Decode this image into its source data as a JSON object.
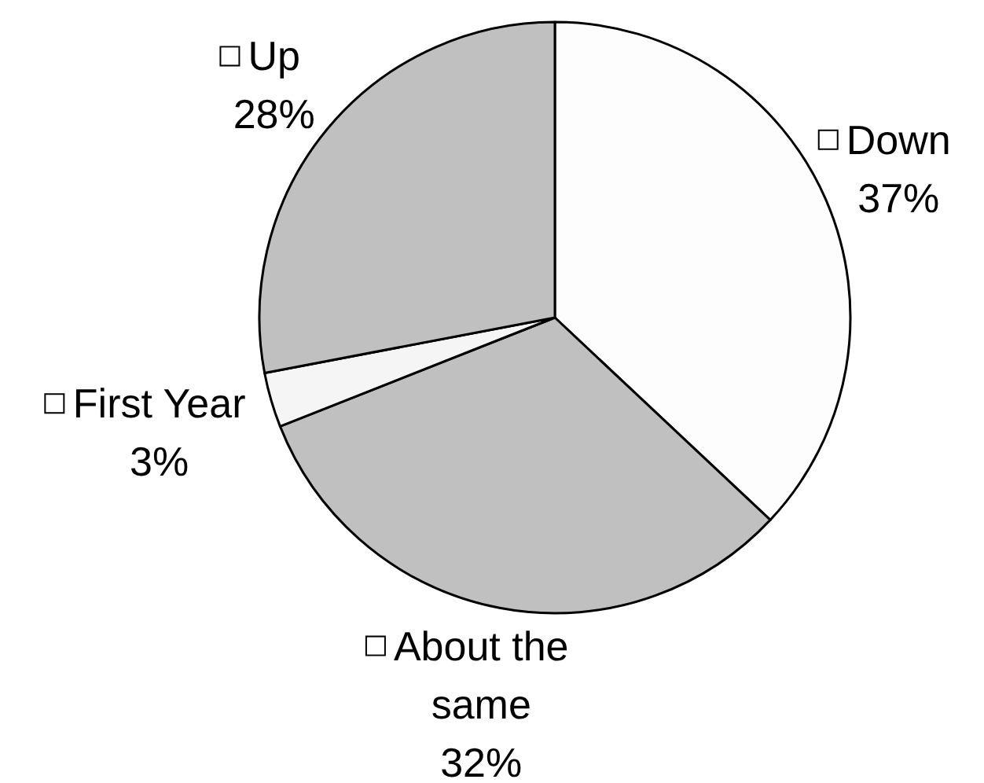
{
  "chart_data": {
    "type": "pie",
    "categories": [
      "Down",
      "About the same",
      "First Year",
      "Up"
    ],
    "values": [
      37,
      32,
      3,
      28
    ],
    "colors": [
      "#fdfdfd",
      "#c0c0c0",
      "#f5f5f5",
      "#c0c0c0"
    ],
    "value_labels": [
      "37%",
      "32%",
      "3%",
      "28%"
    ],
    "legend": "bottom left"
  }
}
